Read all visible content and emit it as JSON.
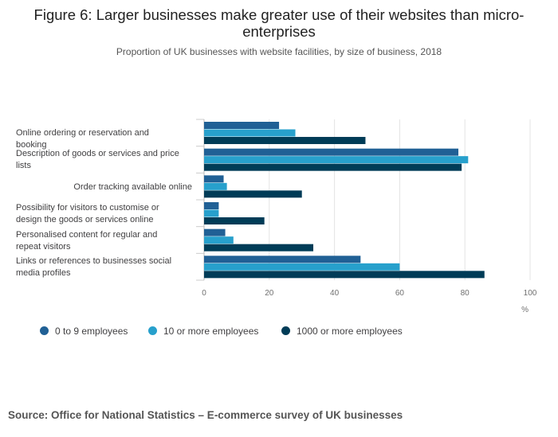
{
  "header": {
    "title": "Figure 6: Larger businesses make greater use of their websites than micro-enterprises",
    "subtitle": "Proportion of UK businesses with website facilities, by size of business, 2018"
  },
  "chart_data": {
    "type": "bar",
    "orientation": "horizontal",
    "title": "Figure 6: Larger businesses make greater use of their websites than micro-enterprises",
    "subtitle": "Proportion of UK businesses with website facilities, by size of business, 2018",
    "xlabel": "%",
    "ylabel": "",
    "xlim": [
      0,
      100
    ],
    "xticks": [
      "0",
      "20",
      "40",
      "60",
      "80",
      "100"
    ],
    "categories": [
      "Online ordering or reservation and booking",
      "Description of goods or services and price lists",
      "Order tracking available online",
      "Possibility for visitors to customise or design the goods or services online",
      "Personalised content for regular and repeat visitors",
      "Links or references to businesses social media profiles"
    ],
    "series": [
      {
        "name": "0 to 9 employees",
        "color": "#206095",
        "values": [
          23,
          78,
          6,
          4.5,
          6.5,
          48
        ]
      },
      {
        "name": "10 or more employees",
        "color": "#27a0cc",
        "values": [
          28,
          81,
          7,
          4.5,
          9,
          60
        ]
      },
      {
        "name": "1000 or more employees",
        "color": "#003c57",
        "values": [
          49.5,
          79,
          30,
          18.5,
          33.5,
          86
        ]
      }
    ],
    "legend_position": "bottom-left",
    "grid": true
  },
  "footer": {
    "source": "Source: Office for National Statistics – E-commerce survey of UK businesses"
  }
}
